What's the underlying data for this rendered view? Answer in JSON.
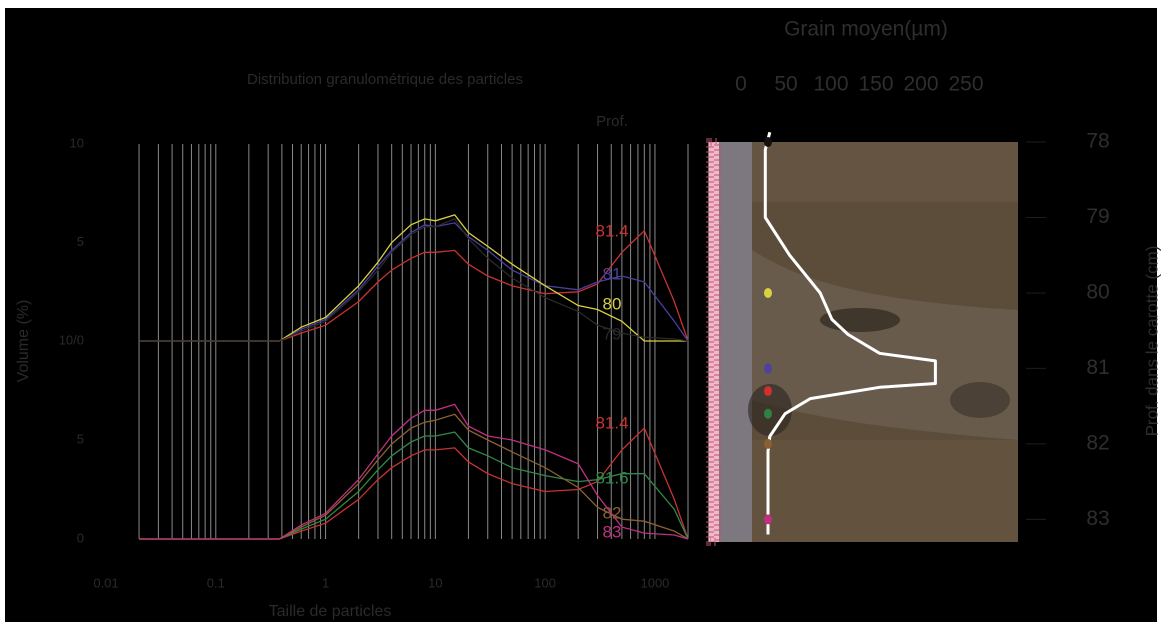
{
  "chart_data": [
    {
      "type": "line",
      "title": "Distribution granulométrique des particles",
      "xlabel": "Taille de particles",
      "ylabel": "Volume (%)",
      "legend_title": "Prof.",
      "xscale": "log",
      "xlim": [
        0.01,
        2000
      ],
      "xticks": [
        0.01,
        0.1,
        1,
        10,
        100,
        1000
      ],
      "x_grid": [
        0.02,
        0.03,
        0.04,
        0.05,
        0.06,
        0.07,
        0.08,
        0.09,
        0.1,
        0.2,
        0.3,
        0.4,
        0.5,
        0.6,
        0.7,
        0.8,
        0.9,
        1,
        2,
        3,
        4,
        5,
        6,
        7,
        8,
        9,
        10,
        20,
        30,
        40,
        50,
        60,
        70,
        80,
        90,
        100,
        200,
        300,
        400,
        500,
        600,
        700,
        800,
        900,
        1000,
        2000
      ],
      "x": [
        0.02,
        0.38,
        0.6,
        1,
        2,
        3,
        4,
        6,
        8,
        10,
        15,
        20,
        30,
        50,
        100,
        200,
        300,
        500,
        800,
        1500,
        2000
      ],
      "panels": [
        {
          "ylim": [
            0,
            10
          ],
          "yticks": [
            {
              "value": 0,
              "label": "10/0"
            },
            5,
            10
          ],
          "series": [
            {
              "name": "81.4",
              "color": "#c83232",
              "values": [
                0,
                0,
                0.4,
                0.8,
                2.0,
                3.0,
                3.6,
                4.2,
                4.5,
                4.5,
                4.6,
                3.9,
                3.3,
                2.8,
                2.4,
                2.5,
                2.9,
                4.5,
                5.6,
                2.0,
                0
              ]
            },
            {
              "name": "81",
              "color": "#4a3fa0",
              "values": [
                0,
                0,
                0.6,
                1.1,
                2.6,
                3.8,
                4.6,
                5.5,
                5.9,
                5.8,
                6.0,
                5.3,
                4.6,
                3.6,
                2.8,
                2.6,
                3.0,
                3.3,
                3.0,
                1.0,
                0
              ]
            },
            {
              "name": "80",
              "color": "#d8d040",
              "values": [
                0,
                0,
                0.7,
                1.2,
                2.8,
                4.0,
                5.0,
                5.9,
                6.2,
                6.1,
                6.4,
                5.5,
                4.8,
                3.9,
                2.8,
                1.8,
                1.6,
                1.0,
                0,
                0,
                0
              ]
            },
            {
              "name": "79",
              "color": "#2a2a2a",
              "values": [
                0,
                0,
                0.5,
                1.0,
                2.5,
                3.6,
                4.5,
                5.4,
                5.8,
                5.8,
                6.2,
                5.2,
                4.2,
                3.2,
                2.2,
                1.5,
                0.8,
                0.4,
                0.2,
                0.1,
                0
              ]
            }
          ]
        },
        {
          "ylim": [
            0,
            10
          ],
          "yticks": [
            0,
            5
          ],
          "series": [
            {
              "name": "81.4",
              "color": "#c83232",
              "values": [
                0,
                0,
                0.4,
                0.8,
                2.0,
                3.0,
                3.6,
                4.2,
                4.5,
                4.5,
                4.6,
                3.9,
                3.3,
                2.8,
                2.4,
                2.5,
                2.9,
                4.5,
                5.6,
                2.0,
                0
              ]
            },
            {
              "name": "81.6",
              "color": "#30884a",
              "values": [
                0,
                0,
                0.5,
                1.0,
                2.4,
                3.5,
                4.2,
                4.9,
                5.2,
                5.2,
                5.4,
                4.6,
                4.2,
                3.6,
                3.2,
                2.9,
                3.0,
                3.3,
                3.3,
                1.5,
                0
              ]
            },
            {
              "name": "82",
              "color": "#8a6030",
              "values": [
                0,
                0,
                0.6,
                1.2,
                2.8,
                4.0,
                4.8,
                5.6,
                5.9,
                6.0,
                6.3,
                5.5,
                5.0,
                4.4,
                3.6,
                2.6,
                1.6,
                1.0,
                0.9,
                0.4,
                0
              ]
            },
            {
              "name": "83",
              "color": "#c03080",
              "values": [
                0,
                0,
                0.7,
                1.3,
                3.0,
                4.3,
                5.2,
                6.1,
                6.5,
                6.5,
                6.8,
                5.7,
                5.2,
                5.0,
                4.5,
                3.8,
                2.2,
                0.6,
                0.3,
                0.2,
                0
              ]
            }
          ]
        }
      ]
    },
    {
      "type": "profile",
      "title": "Grain moyen(µm)",
      "ylabel": "Prof. dans le carotte (cm)",
      "xlim": [
        0,
        250
      ],
      "xticks": [
        0,
        50,
        100,
        150,
        200,
        250
      ],
      "ylim": [
        77.9,
        83.3
      ],
      "yticks": [
        78,
        79,
        80,
        81,
        82,
        83
      ],
      "line_color": "#ffffff",
      "depth": [
        77.87,
        78.1,
        79.0,
        79.5,
        80.0,
        80.35,
        80.55,
        80.8,
        80.9,
        81.2,
        81.25,
        81.4,
        81.6,
        81.9,
        82.1,
        83.2
      ],
      "grain": [
        32,
        27,
        27,
        54,
        88,
        101,
        119,
        154,
        216,
        216,
        154,
        77,
        49,
        32,
        30,
        30
      ],
      "samples": {
        "depth": [
          78,
          80,
          81,
          81.3,
          81.6,
          82,
          83
        ],
        "colors": [
          "#111111",
          "#d8d040",
          "#5040a0",
          "#d03030",
          "#308040",
          "#8a6030",
          "#c03080"
        ]
      }
    }
  ]
}
